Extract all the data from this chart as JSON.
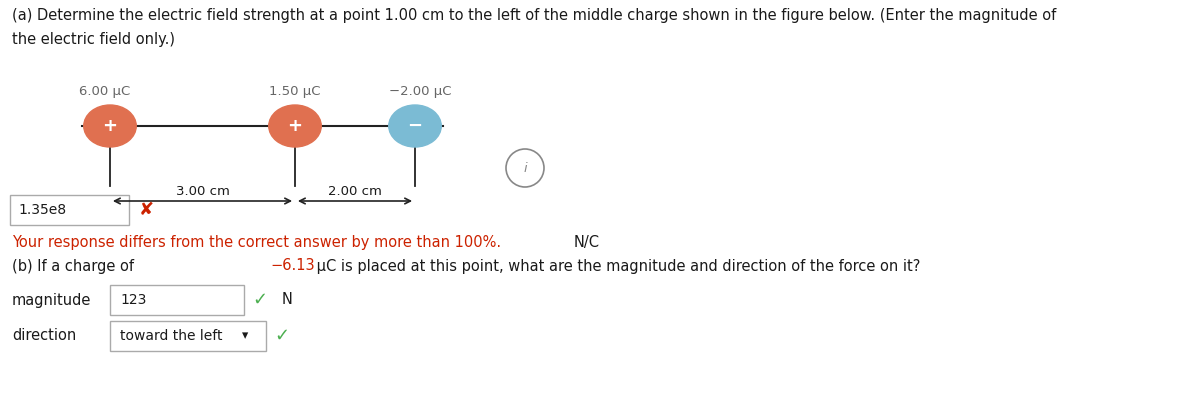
{
  "title_a": "(a) Determine the electric field strength at a point 1.00 cm to the left of the middle charge shown in the figure below. (Enter the magnitude of",
  "title_a2": "the electric field only.)",
  "charge1_label": "6.00 μC",
  "charge2_label": "1.50 μC",
  "charge3_label": "−2.00 μC",
  "charge1_symbol": "+",
  "charge2_symbol": "+",
  "charge3_symbol": "−",
  "charge1_color": "#E07050",
  "charge2_color": "#E07050",
  "charge3_color": "#7BBBD4",
  "dist1_label": "3.00 cm",
  "dist2_label": "2.00 cm",
  "answer_a_value": "1.35e8",
  "feedback_red": "Your response differs from the correct answer by more than 100%.",
  "feedback_black": "N/C",
  "part_b_pre": "(b) If a charge of ",
  "part_b_red": "−6.13",
  "part_b_post": " μC is placed at this point, what are the magnitude and direction of the force on it?",
  "mag_label": "magnitude",
  "mag_value": "123",
  "mag_unit": "N",
  "dir_label": "direction",
  "dir_value": "toward the left",
  "bg_color": "#ffffff",
  "text_color": "#1a1a1a",
  "gray_color": "#555555",
  "red_color": "#CC2200",
  "green_color": "#4CAF50",
  "box_border": "#aaaaaa",
  "x_mark_color": "#CC2200",
  "info_color": "#888888",
  "line_color": "#222222",
  "charge_label_color": "#666666",
  "title_fontsize": 10.5,
  "body_fontsize": 10.5,
  "small_fontsize": 9.5,
  "fig_width": 11.88,
  "fig_height": 4.08,
  "dpi": 100
}
